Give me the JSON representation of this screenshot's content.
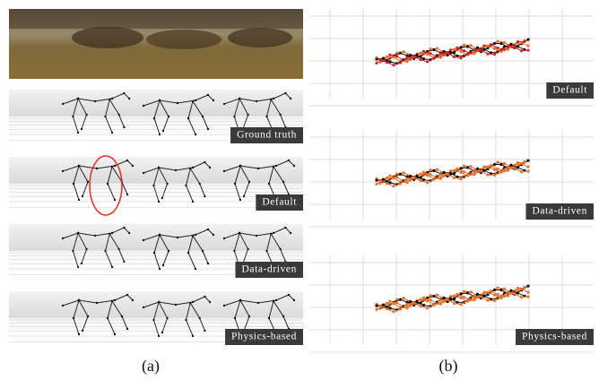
{
  "figure": {
    "left_panels": [
      {
        "label": "Ground truth"
      },
      {
        "label": "Default"
      },
      {
        "label": "Data-driven"
      },
      {
        "label": "Physics-based"
      }
    ],
    "right_panels": [
      {
        "label": "Default"
      },
      {
        "label": "Data-driven"
      },
      {
        "label": "Physics-based"
      }
    ],
    "captions": [
      "(a)",
      "(b)"
    ]
  }
}
